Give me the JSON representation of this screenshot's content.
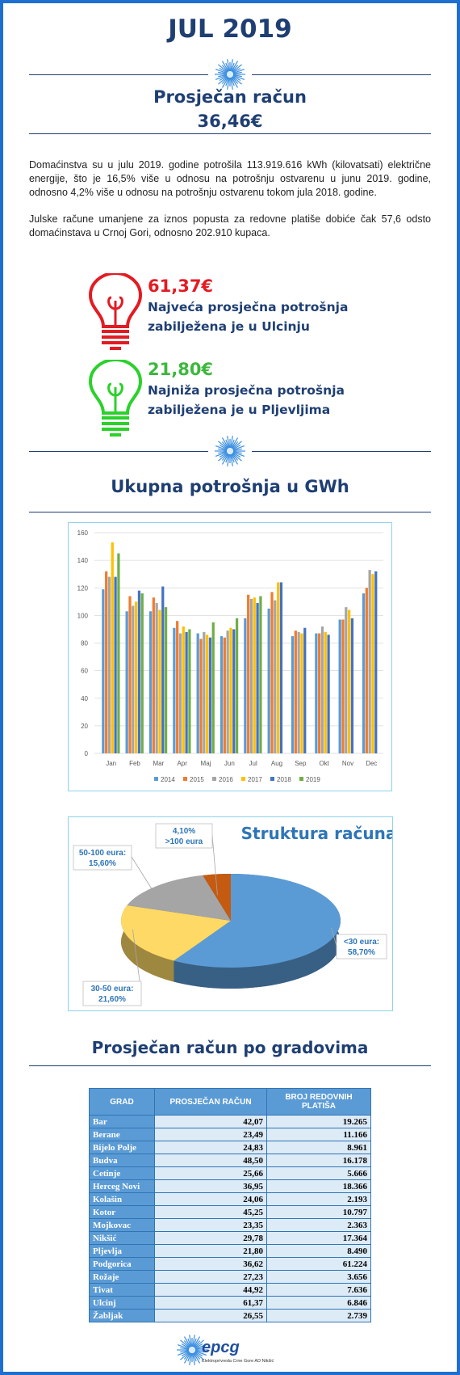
{
  "header": {
    "title": "JUL 2019",
    "subtitle": "Prosječan račun",
    "amount": "36,46€"
  },
  "intro": [
    "Domaćinstva su u julu 2019. godine potrošila 113.919.616 kWh (kilovatsati) električne energije, što je 16,5% više u odnosu na potrošnju ostvarenu u junu 2019. godine, odnosno 4,2% više u odnosu na potrošnju ostvarenu tokom jula 2018. godine.",
    "Julske račune umanjene za iznos popusta za redovne platiše dobiće čak 57,6 odsto domaćinstava u Crnoj Gori, odnosno 202.910 kupaca."
  ],
  "highlights": [
    {
      "amount": "61,37€",
      "lines": [
        "Najveća prosječna potrošnja",
        "zabilježena je u Ulcinju"
      ]
    },
    {
      "amount": "21,80€",
      "lines": [
        "Najniža prosječna potrošnja",
        "zabilježena je u Pljevljima"
      ]
    }
  ],
  "section_consumption": "Ukupna potrošnja u GWh",
  "chart_data": [
    {
      "type": "bar",
      "categories": [
        "Jan",
        "Feb",
        "Mar",
        "Apr",
        "Maj",
        "Jun",
        "Jul",
        "Aug",
        "Sep",
        "Okt",
        "Nov",
        "Dec"
      ],
      "series": [
        {
          "name": "2014",
          "color": "#5b9bd5",
          "values": [
            119,
            103,
            103,
            91,
            87,
            85,
            98,
            105,
            85,
            87,
            97,
            116
          ]
        },
        {
          "name": "2015",
          "color": "#ed7d31",
          "values": [
            132,
            114,
            113,
            96,
            83,
            84,
            115,
            117,
            89,
            87,
            97,
            120
          ]
        },
        {
          "name": "2016",
          "color": "#a5a5a5",
          "values": [
            128,
            107,
            109,
            87,
            88,
            89,
            112,
            111,
            88,
            92,
            106,
            133
          ]
        },
        {
          "name": "2017",
          "color": "#ffc000",
          "values": [
            153,
            110,
            104,
            92,
            86,
            91,
            113,
            124,
            87,
            88,
            104,
            130
          ]
        },
        {
          "name": "2018",
          "color": "#4472c4",
          "values": [
            128,
            118,
            121,
            88,
            84,
            90,
            109,
            124,
            91,
            86,
            98,
            132
          ]
        },
        {
          "name": "2019",
          "color": "#70ad47",
          "values": [
            145,
            116,
            106,
            90,
            95,
            98,
            114,
            null,
            null,
            null,
            null,
            null
          ]
        }
      ],
      "ylim": [
        0,
        160
      ],
      "yticks": [
        0,
        20,
        40,
        60,
        80,
        100,
        120,
        140,
        160
      ],
      "grid": true,
      "legend": "bottom"
    },
    {
      "type": "pie",
      "title": "Struktura računa",
      "categories": [
        "<30 eura:",
        "30-50 eura:",
        "50-100 eura:",
        ">100 eura"
      ],
      "values": [
        58.7,
        21.6,
        15.6,
        4.1
      ],
      "value_labels": [
        "58,70%",
        "21,60%",
        "15,60%",
        "4,10%"
      ],
      "colors": [
        "#5b9bd5",
        "#ffd966",
        "#a5a5a5",
        "#c55a11"
      ]
    }
  ],
  "section_cities": "Prosječan račun po gradovima",
  "table": {
    "header": [
      "GRAD",
      "PROSJEČAN RAČUN",
      "BROJ REDOVNIH PLATIŠA"
    ],
    "rows": [
      [
        "Bar",
        "42,07",
        "19.265"
      ],
      [
        "Berane",
        "23,49",
        "11.166"
      ],
      [
        "Bijelo Polje",
        "24,83",
        "8.961"
      ],
      [
        "Budva",
        "48,50",
        "16.178"
      ],
      [
        "Cetinje",
        "25,66",
        "5.666"
      ],
      [
        "Herceg Novi",
        "36,95",
        "18.366"
      ],
      [
        "Kolašin",
        "24,06",
        "2.193"
      ],
      [
        "Kotor",
        "45,25",
        "10.797"
      ],
      [
        "Mojkovac",
        "23,35",
        "2.363"
      ],
      [
        "Nikšić",
        "29,78",
        "17.364"
      ],
      [
        "Pljevlja",
        "21,80",
        "8.490"
      ],
      [
        "Podgorica",
        "36,62",
        "61.224"
      ],
      [
        "Rožaje",
        "27,23",
        "3.656"
      ],
      [
        "Tivat",
        "44,92",
        "7.636"
      ],
      [
        "Ulcinj",
        "61,37",
        "6.846"
      ],
      [
        "Žabljak",
        "26,55",
        "2.739"
      ]
    ]
  },
  "footer": {
    "logo": "epcg",
    "company": "Elektroprivreda Crne Gore AD Nikšić"
  }
}
